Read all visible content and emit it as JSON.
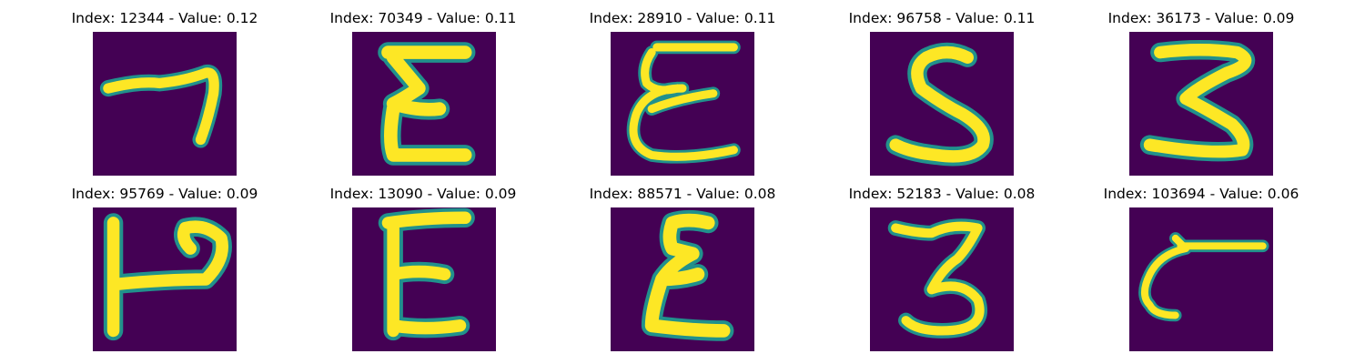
{
  "colors": {
    "background": "#440154",
    "stroke_core": "#fde725",
    "stroke_mid": "#b5de2b",
    "stroke_edge": "#21918c"
  },
  "panels": [
    {
      "title": "Index: 12344 - Value: 0.12",
      "glyph": "seven"
    },
    {
      "title": "Index: 70349 - Value: 0.11",
      "glyph": "sigma"
    },
    {
      "title": "Index: 28910 - Value: 0.11",
      "glyph": "epsilon"
    },
    {
      "title": "Index: 96758 - Value: 0.11",
      "glyph": "s"
    },
    {
      "title": "Index: 36173 - Value: 0.09",
      "glyph": "three"
    },
    {
      "title": "Index: 95769 - Value: 0.09",
      "glyph": "p-rotated"
    },
    {
      "title": "Index: 13090 - Value: 0.09",
      "glyph": "e"
    },
    {
      "title": "Index: 88571 - Value: 0.08",
      "glyph": "sigma"
    },
    {
      "title": "Index: 52183 - Value: 0.08",
      "glyph": "three"
    },
    {
      "title": "Index: 103694 - Value: 0.06",
      "glyph": "c-bar"
    }
  ]
}
